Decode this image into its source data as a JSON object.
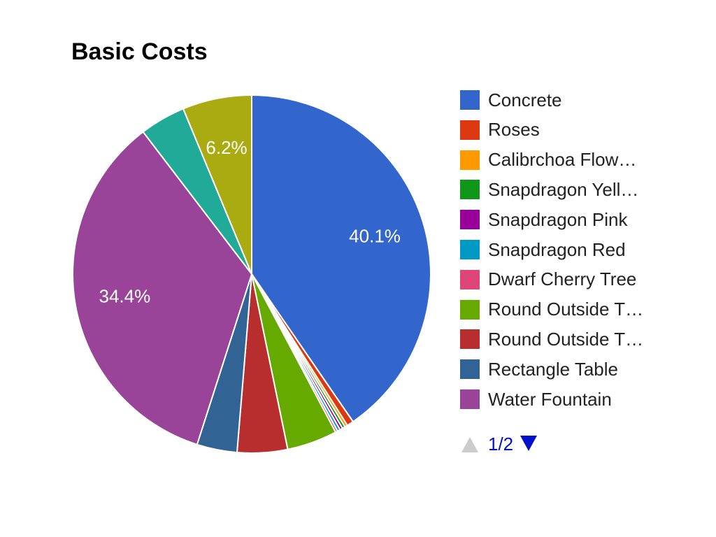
{
  "chart_data": {
    "type": "pie",
    "title": "Basic Costs",
    "slices": [
      {
        "label": "Concrete",
        "value": 40.1,
        "color": "#3366cc",
        "show_label": "40.1%"
      },
      {
        "label": "Roses",
        "value": 0.6,
        "color": "#dc3912",
        "show_label": ""
      },
      {
        "label": "Calibrchoa Flow…",
        "value": 0.25,
        "color": "#ff9900",
        "show_label": ""
      },
      {
        "label": "Snapdragon Yell…",
        "value": 0.25,
        "color": "#109618",
        "show_label": ""
      },
      {
        "label": "Snapdragon Pink",
        "value": 0.25,
        "color": "#990099",
        "show_label": ""
      },
      {
        "label": "Snapdragon Red",
        "value": 0.25,
        "color": "#0099c6",
        "show_label": ""
      },
      {
        "label": "Dwarf Cherry Tree",
        "value": 0.2,
        "color": "#dd4477",
        "show_label": ""
      },
      {
        "label": "Round Outside T…",
        "value": 4.5,
        "color": "#66aa00",
        "show_label": ""
      },
      {
        "label": "Round Outside T…",
        "value": 4.5,
        "color": "#b82e2e",
        "show_label": ""
      },
      {
        "label": "Rectangle Table",
        "value": 3.6,
        "color": "#316395",
        "show_label": ""
      },
      {
        "label": "Water Fountain",
        "value": 34.4,
        "color": "#994499",
        "show_label": "34.4%"
      },
      {
        "label": "",
        "value": 4.1,
        "color": "#22aa99",
        "show_label": "",
        "in_legend": false
      },
      {
        "label": "",
        "value": 6.2,
        "color": "#aaaa11",
        "show_label": "6.2%",
        "in_legend": false
      }
    ],
    "legend_position": "right"
  },
  "legend_pager": {
    "text": "1/2",
    "prev_enabled": false,
    "next_enabled": true,
    "prev_color": "#cccccc",
    "next_color": "#0011cc"
  }
}
